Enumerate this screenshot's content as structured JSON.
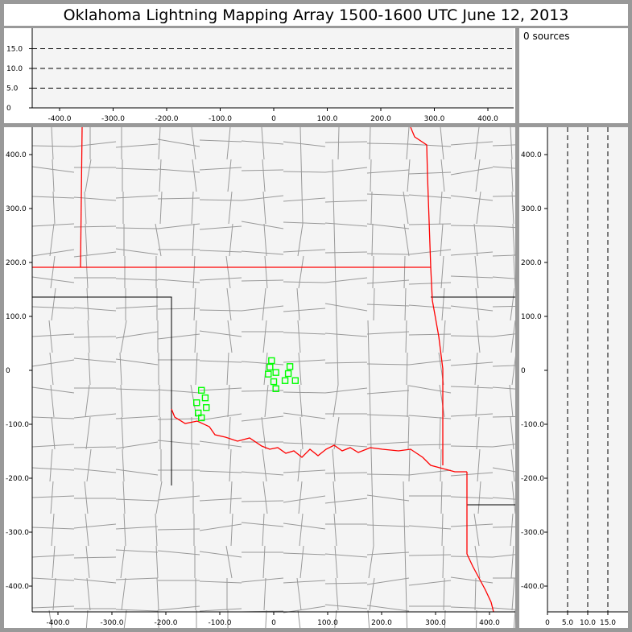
{
  "title": "Oklahoma Lightning Mapping Array   1500-1600 UTC  June 12, 2013",
  "source_count_label": "0 sources",
  "colors": {
    "background": "#f4f4f4",
    "frame": "#999999",
    "state_border": "#ff0000",
    "county_line": "#999999",
    "stations": "#00ff00"
  },
  "chart_data": [
    {
      "type": "line",
      "panel": "altitude-vs-east-west",
      "xticks": [
        "-400.0",
        "-300.0",
        "-200.0",
        "-100.0",
        "0",
        "100.0",
        "200.0",
        "300.0",
        "400.0"
      ],
      "xtick_values": [
        -400,
        -300,
        -200,
        -100,
        0,
        100,
        200,
        300,
        400
      ],
      "yticks": [
        "0",
        "5.0",
        "10.0",
        "15.0"
      ],
      "ytick_values": [
        0,
        5,
        10,
        15
      ],
      "xlim": [
        -450,
        450
      ],
      "ylim": [
        0,
        20
      ],
      "reference_lines": [
        5,
        10,
        15
      ]
    },
    {
      "type": "scatter",
      "panel": "plan-view-map",
      "xticks": [
        "-400.0",
        "-300.0",
        "-200.0",
        "-100.0",
        "0",
        "100.0",
        "200.0",
        "300.0",
        "400.0"
      ],
      "xtick_values": [
        -400,
        -300,
        -200,
        -100,
        0,
        100,
        200,
        300,
        400
      ],
      "yticks": [
        "400.0",
        "300.0",
        "200.0",
        "100.0",
        "0",
        "-100.0",
        "-200.0",
        "-300.0",
        "-400.0"
      ],
      "ytick_values": [
        400,
        300,
        200,
        100,
        0,
        -100,
        -200,
        -300,
        -400
      ],
      "xlim": [
        -450,
        450
      ],
      "ylim": [
        -450,
        450
      ],
      "stations": [
        {
          "x": -4,
          "y": 18
        },
        {
          "x": -7,
          "y": 6
        },
        {
          "x": 30,
          "y": 7
        },
        {
          "x": -10,
          "y": -7
        },
        {
          "x": 4,
          "y": -4
        },
        {
          "x": 27,
          "y": -6
        },
        {
          "x": 0,
          "y": -21
        },
        {
          "x": 21,
          "y": -19
        },
        {
          "x": 40,
          "y": -19
        },
        {
          "x": 4,
          "y": -34
        },
        {
          "x": -134,
          "y": -37
        },
        {
          "x": -127,
          "y": -51
        },
        {
          "x": -143,
          "y": -60
        },
        {
          "x": -125,
          "y": -69
        },
        {
          "x": -140,
          "y": -79
        },
        {
          "x": -134,
          "y": -88
        }
      ]
    },
    {
      "type": "line",
      "panel": "north-south-vs-altitude",
      "xticks": [
        "0",
        "5.0",
        "10.0",
        "15.0"
      ],
      "xtick_values": [
        0,
        5,
        10,
        15
      ],
      "xlim": [
        0,
        20
      ],
      "ylim": [
        -450,
        450
      ],
      "reference_lines": [
        5,
        10,
        15
      ]
    }
  ]
}
